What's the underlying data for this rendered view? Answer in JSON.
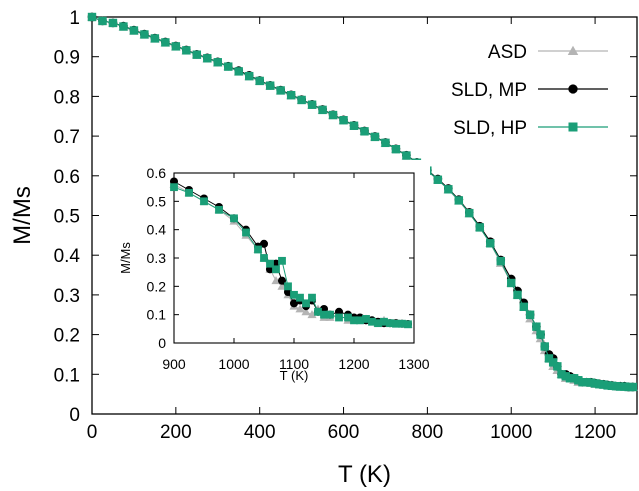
{
  "chart_data": [
    {
      "type": "line",
      "role": "main",
      "xlabel": "T (K)",
      "ylabel": "M/Ms",
      "xlim": [
        0,
        1300
      ],
      "ylim": [
        0,
        1.0
      ],
      "xticks": [
        "0",
        "200",
        "400",
        "600",
        "800",
        "1000",
        "1200"
      ],
      "yticks": [
        "0",
        "0.1",
        "0.2",
        "0.3",
        "0.4",
        "0.5",
        "0.6",
        "0.7",
        "0.8",
        "0.9",
        "1"
      ],
      "legend_position": "top-right",
      "grid": false,
      "series": [
        {
          "name": "ASD",
          "color": "#b4b4b4",
          "marker": "triangle",
          "x": [
            0,
            25,
            50,
            75,
            100,
            125,
            150,
            175,
            200,
            225,
            250,
            275,
            300,
            325,
            350,
            375,
            400,
            425,
            450,
            475,
            500,
            525,
            550,
            575,
            600,
            625,
            650,
            675,
            700,
            725,
            750,
            775,
            800,
            825,
            850,
            875,
            900,
            925,
            950,
            975,
            1000,
            1015,
            1030,
            1045,
            1060,
            1070,
            1080,
            1090,
            1100,
            1110,
            1120,
            1130,
            1140,
            1150,
            1160,
            1170,
            1180,
            1190,
            1200,
            1210,
            1220,
            1230,
            1240,
            1250,
            1260,
            1270,
            1280,
            1290
          ],
          "y": [
            1.0,
            0.99,
            0.985,
            0.975,
            0.965,
            0.955,
            0.945,
            0.935,
            0.925,
            0.915,
            0.905,
            0.895,
            0.885,
            0.875,
            0.862,
            0.85,
            0.838,
            0.826,
            0.814,
            0.802,
            0.79,
            0.778,
            0.765,
            0.752,
            0.739,
            0.726,
            0.712,
            0.698,
            0.682,
            0.667,
            0.65,
            0.632,
            0.612,
            0.59,
            0.565,
            0.537,
            0.505,
            0.47,
            0.43,
            0.38,
            0.33,
            0.3,
            0.27,
            0.24,
            0.21,
            0.19,
            0.16,
            0.14,
            0.12,
            0.11,
            0.1,
            0.09,
            0.09,
            0.085,
            0.08,
            0.08,
            0.08,
            0.078,
            0.075,
            0.075,
            0.073,
            0.072,
            0.072,
            0.07,
            0.07,
            0.07,
            0.068,
            0.068
          ]
        },
        {
          "name": "SLD, MP",
          "color": "#000000",
          "marker": "circle",
          "x": [
            0,
            25,
            50,
            75,
            100,
            125,
            150,
            175,
            200,
            225,
            250,
            275,
            300,
            325,
            350,
            375,
            400,
            425,
            450,
            475,
            500,
            525,
            550,
            575,
            600,
            625,
            650,
            675,
            700,
            725,
            750,
            775,
            800,
            825,
            850,
            875,
            900,
            925,
            950,
            975,
            1000,
            1015,
            1030,
            1045,
            1060,
            1070,
            1080,
            1090,
            1100,
            1110,
            1120,
            1130,
            1140,
            1150,
            1160,
            1170,
            1180,
            1190,
            1200,
            1210,
            1220,
            1230,
            1240,
            1250,
            1260,
            1270,
            1280,
            1290
          ],
          "y": [
            1.0,
            0.99,
            0.985,
            0.977,
            0.967,
            0.957,
            0.947,
            0.937,
            0.927,
            0.917,
            0.906,
            0.897,
            0.887,
            0.876,
            0.865,
            0.853,
            0.84,
            0.828,
            0.816,
            0.804,
            0.792,
            0.78,
            0.767,
            0.754,
            0.741,
            0.727,
            0.713,
            0.699,
            0.684,
            0.668,
            0.652,
            0.634,
            0.614,
            0.592,
            0.568,
            0.54,
            0.508,
            0.473,
            0.434,
            0.388,
            0.34,
            0.31,
            0.28,
            0.25,
            0.22,
            0.2,
            0.17,
            0.15,
            0.14,
            0.12,
            0.1,
            0.1,
            0.095,
            0.09,
            0.085,
            0.08,
            0.08,
            0.08,
            0.078,
            0.076,
            0.075,
            0.073,
            0.072,
            0.07,
            0.07,
            0.07,
            0.068,
            0.068
          ]
        },
        {
          "name": "SLD, HP",
          "color": "#1a9e77",
          "marker": "square",
          "x": [
            0,
            25,
            50,
            75,
            100,
            125,
            150,
            175,
            200,
            225,
            250,
            275,
            300,
            325,
            350,
            375,
            400,
            425,
            450,
            475,
            500,
            525,
            550,
            575,
            600,
            625,
            650,
            675,
            700,
            725,
            750,
            775,
            800,
            825,
            850,
            875,
            900,
            925,
            950,
            975,
            1000,
            1015,
            1030,
            1045,
            1060,
            1070,
            1080,
            1090,
            1100,
            1110,
            1120,
            1130,
            1140,
            1150,
            1160,
            1170,
            1180,
            1190,
            1200,
            1210,
            1220,
            1230,
            1240,
            1250,
            1260,
            1270,
            1280,
            1290
          ],
          "y": [
            1.0,
            0.99,
            0.985,
            0.976,
            0.966,
            0.956,
            0.946,
            0.936,
            0.926,
            0.916,
            0.905,
            0.896,
            0.886,
            0.875,
            0.863,
            0.851,
            0.839,
            0.827,
            0.815,
            0.803,
            0.791,
            0.779,
            0.766,
            0.753,
            0.74,
            0.726,
            0.712,
            0.698,
            0.683,
            0.667,
            0.651,
            0.633,
            0.613,
            0.59,
            0.566,
            0.538,
            0.506,
            0.47,
            0.43,
            0.385,
            0.33,
            0.3,
            0.27,
            0.25,
            0.22,
            0.2,
            0.17,
            0.14,
            0.13,
            0.12,
            0.1,
            0.095,
            0.09,
            0.09,
            0.085,
            0.08,
            0.08,
            0.079,
            0.077,
            0.075,
            0.074,
            0.072,
            0.071,
            0.07,
            0.069,
            0.069,
            0.068,
            0.068
          ]
        }
      ]
    },
    {
      "type": "line",
      "role": "inset",
      "xlabel": "T (K)",
      "ylabel": "M/Ms",
      "xlim": [
        900,
        1300
      ],
      "ylim": [
        0,
        0.6
      ],
      "xticks": [
        "900",
        "1000",
        "1100",
        "1200",
        "1300"
      ],
      "yticks": [
        "0",
        "0.1",
        "0.2",
        "0.3",
        "0.4",
        "0.5",
        "0.6"
      ],
      "grid": false,
      "series": [
        {
          "name": "ASD",
          "color": "#b4b4b4",
          "marker": "triangle",
          "x": [
            900,
            925,
            950,
            975,
            1000,
            1020,
            1040,
            1050,
            1060,
            1070,
            1080,
            1090,
            1100,
            1110,
            1120,
            1130,
            1140,
            1150,
            1160,
            1175,
            1190,
            1200,
            1210,
            1220,
            1230,
            1240,
            1250,
            1260,
            1270,
            1280,
            1290
          ],
          "y": [
            0.56,
            0.53,
            0.5,
            0.47,
            0.43,
            0.38,
            0.33,
            0.3,
            0.26,
            0.22,
            0.2,
            0.17,
            0.13,
            0.12,
            0.11,
            0.1,
            0.12,
            0.09,
            0.09,
            0.1,
            0.08,
            0.09,
            0.08,
            0.085,
            0.08,
            0.07,
            0.08,
            0.07,
            0.07,
            0.068,
            0.065
          ]
        },
        {
          "name": "SLD, MP",
          "color": "#000000",
          "marker": "circle",
          "x": [
            900,
            925,
            950,
            975,
            1000,
            1020,
            1040,
            1050,
            1060,
            1070,
            1080,
            1090,
            1100,
            1110,
            1120,
            1130,
            1140,
            1150,
            1160,
            1175,
            1190,
            1200,
            1210,
            1220,
            1230,
            1240,
            1250,
            1260,
            1270,
            1280,
            1290
          ],
          "y": [
            0.57,
            0.54,
            0.51,
            0.48,
            0.44,
            0.4,
            0.34,
            0.35,
            0.26,
            0.28,
            0.22,
            0.18,
            0.14,
            0.15,
            0.13,
            0.15,
            0.11,
            0.12,
            0.1,
            0.11,
            0.1,
            0.09,
            0.09,
            0.08,
            0.08,
            0.075,
            0.07,
            0.07,
            0.07,
            0.068,
            0.067
          ]
        },
        {
          "name": "SLD, HP",
          "color": "#1a9e77",
          "marker": "square",
          "x": [
            900,
            925,
            950,
            975,
            1000,
            1020,
            1040,
            1050,
            1060,
            1070,
            1080,
            1090,
            1100,
            1110,
            1120,
            1130,
            1140,
            1150,
            1160,
            1175,
            1190,
            1200,
            1210,
            1220,
            1230,
            1240,
            1250,
            1260,
            1270,
            1280,
            1290
          ],
          "y": [
            0.55,
            0.53,
            0.5,
            0.47,
            0.44,
            0.39,
            0.33,
            0.3,
            0.28,
            0.26,
            0.29,
            0.2,
            0.17,
            0.16,
            0.14,
            0.16,
            0.11,
            0.1,
            0.1,
            0.09,
            0.09,
            0.08,
            0.08,
            0.085,
            0.075,
            0.07,
            0.075,
            0.07,
            0.068,
            0.068,
            0.066
          ]
        }
      ]
    }
  ]
}
